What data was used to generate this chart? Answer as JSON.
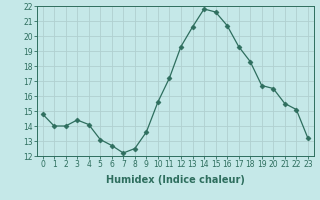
{
  "x": [
    0,
    1,
    2,
    3,
    4,
    5,
    6,
    7,
    8,
    9,
    10,
    11,
    12,
    13,
    14,
    15,
    16,
    17,
    18,
    19,
    20,
    21,
    22,
    23
  ],
  "y": [
    14.8,
    14.0,
    14.0,
    14.4,
    14.1,
    13.1,
    12.7,
    12.2,
    12.5,
    13.6,
    15.6,
    17.2,
    19.3,
    20.6,
    21.8,
    21.6,
    20.7,
    19.3,
    18.3,
    16.7,
    16.5,
    15.5,
    15.1,
    13.2
  ],
  "line_color": "#2e6e5e",
  "marker": "D",
  "marker_size": 2.5,
  "bg_color": "#c5e8e8",
  "grid_color": "#b0d0d0",
  "xlabel": "Humidex (Indice chaleur)",
  "ylim": [
    12,
    22
  ],
  "xlim": [
    -0.5,
    23.5
  ],
  "yticks": [
    12,
    13,
    14,
    15,
    16,
    17,
    18,
    19,
    20,
    21,
    22
  ],
  "xticks": [
    0,
    1,
    2,
    3,
    4,
    5,
    6,
    7,
    8,
    9,
    10,
    11,
    12,
    13,
    14,
    15,
    16,
    17,
    18,
    19,
    20,
    21,
    22,
    23
  ],
  "xlabel_fontsize": 7,
  "tick_fontsize": 5.5
}
